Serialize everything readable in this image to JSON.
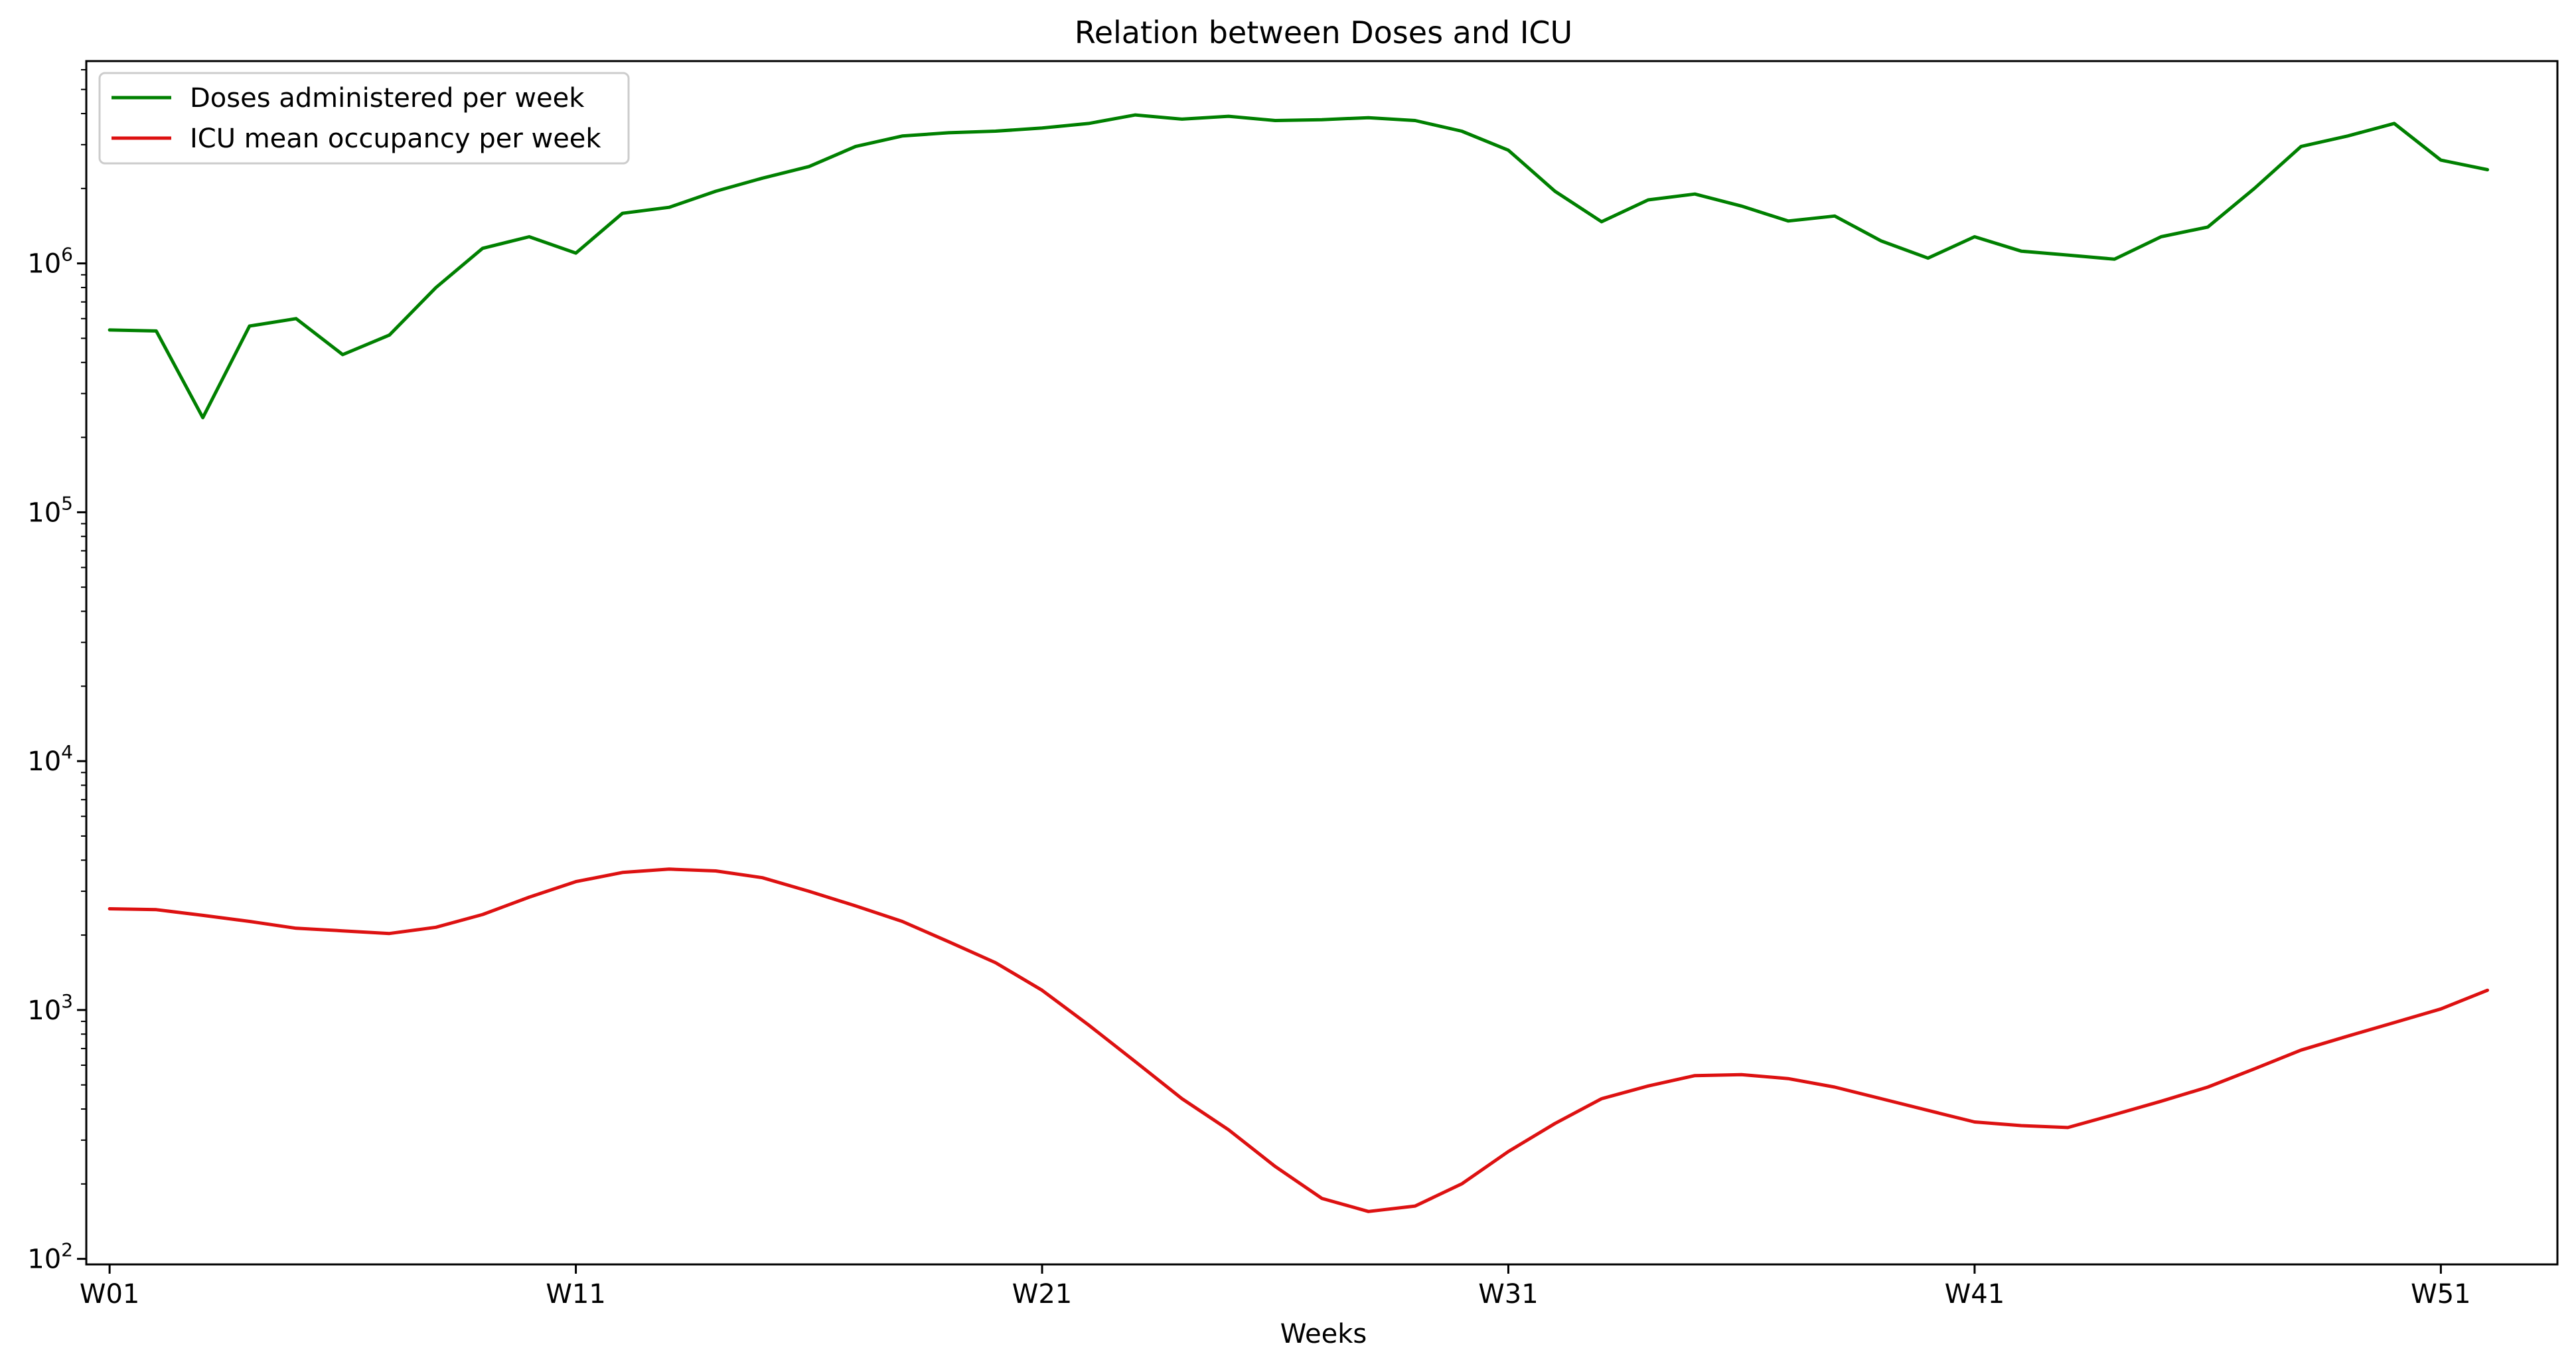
{
  "chart_data": {
    "type": "line",
    "title": "Relation between Doses and ICU",
    "xlabel": "Weeks",
    "ylabel": "",
    "yscale": "log",
    "ylim": [
      95,
      6500000
    ],
    "xlim": [
      0.5,
      53.5
    ],
    "legend_position": "top-left",
    "grid": false,
    "x_ticks": [
      {
        "week": 1,
        "label": "W01"
      },
      {
        "week": 11,
        "label": "W11"
      },
      {
        "week": 21,
        "label": "W21"
      },
      {
        "week": 31,
        "label": "W31"
      },
      {
        "week": 41,
        "label": "W41"
      },
      {
        "week": 51,
        "label": "W51"
      }
    ],
    "y_ticks": [
      {
        "value": 100,
        "base": "10",
        "exp": "2"
      },
      {
        "value": 1000,
        "base": "10",
        "exp": "3"
      },
      {
        "value": 10000,
        "base": "10",
        "exp": "4"
      },
      {
        "value": 100000,
        "base": "10",
        "exp": "5"
      },
      {
        "value": 1000000,
        "base": "10",
        "exp": "6"
      }
    ],
    "x": [
      1,
      2,
      3,
      4,
      5,
      6,
      7,
      8,
      9,
      10,
      11,
      12,
      13,
      14,
      15,
      16,
      17,
      18,
      19,
      20,
      21,
      22,
      23,
      24,
      25,
      26,
      27,
      28,
      29,
      30,
      31,
      32,
      33,
      34,
      35,
      36,
      37,
      38,
      39,
      40,
      41,
      42,
      43,
      44,
      45,
      46,
      47,
      48,
      49,
      50,
      51,
      52
    ],
    "series": [
      {
        "name": "Doses administered per week",
        "color": "#008000",
        "values": [
          540000,
          535000,
          240000,
          560000,
          600000,
          430000,
          515000,
          800000,
          1150000,
          1280000,
          1100000,
          1590000,
          1680000,
          1950000,
          2200000,
          2450000,
          2950000,
          3250000,
          3350000,
          3400000,
          3500000,
          3650000,
          3950000,
          3800000,
          3900000,
          3750000,
          3780000,
          3850000,
          3750000,
          3400000,
          2850000,
          1950000,
          1470000,
          1800000,
          1900000,
          1700000,
          1480000,
          1550000,
          1230000,
          1050000,
          1280000,
          1120000,
          1080000,
          1040000,
          1280000,
          1400000,
          2000000,
          2950000,
          3250000,
          3650000,
          2600000,
          2380000
        ]
      },
      {
        "name": "ICU mean occupancy per week",
        "color": "#dd1111",
        "values": [
          2550,
          2530,
          2400,
          2270,
          2130,
          2080,
          2030,
          2150,
          2420,
          2840,
          3280,
          3570,
          3680,
          3620,
          3400,
          3000,
          2620,
          2270,
          1880,
          1550,
          1200,
          870,
          620,
          440,
          330,
          235,
          175,
          155,
          163,
          200,
          270,
          350,
          440,
          495,
          545,
          550,
          530,
          490,
          440,
          395,
          355,
          343,
          337,
          380,
          430,
          490,
          580,
          690,
          785,
          890,
          1010,
          1200
        ]
      }
    ]
  }
}
